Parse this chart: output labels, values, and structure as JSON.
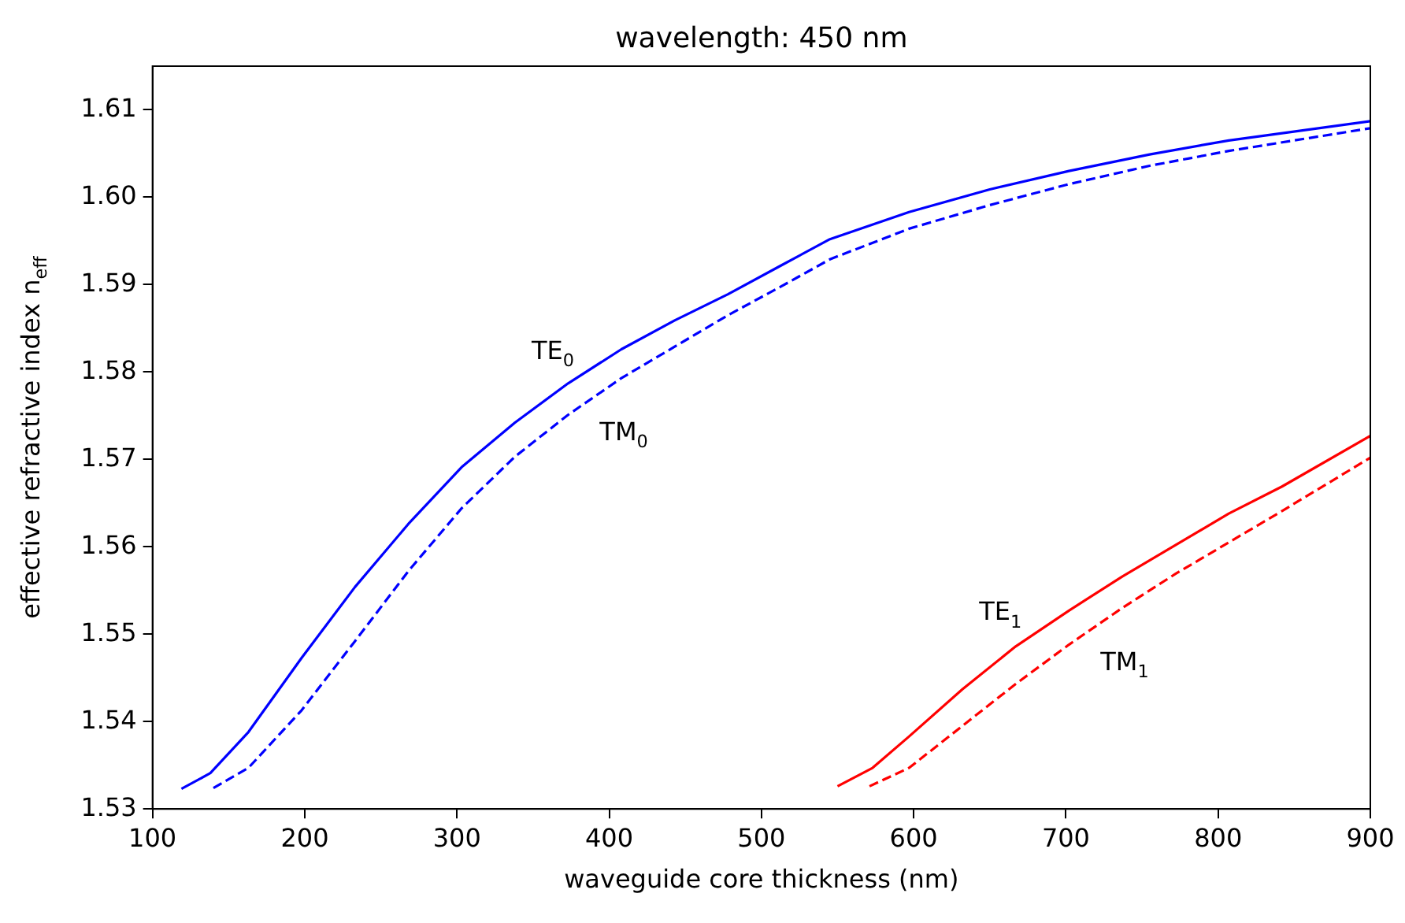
{
  "chart_data": {
    "type": "line",
    "title": "wavelength: 450 nm",
    "xlabel": "waveguide core thickness (nm)",
    "ylabel": "effective refractive index n$_{eff}$",
    "xlim": [
      100,
      900
    ],
    "xticks": [
      100,
      200,
      300,
      400,
      500,
      600,
      700,
      800,
      900
    ],
    "ylim": [
      1.53,
      1.615
    ],
    "yticks": [
      1.53,
      1.54,
      1.55,
      1.56,
      1.57,
      1.58,
      1.59,
      {
        "value": 1.6,
        "label": "1.60"
      },
      1.61
    ],
    "grid": false,
    "legend": false,
    "marker": "none",
    "series": [
      {
        "name": "TE$_{0}$",
        "color": "#0000ff",
        "line_style": "solid",
        "x": [
          119,
          138,
          163,
          198,
          233,
          268,
          303,
          338,
          373,
          408,
          443,
          478,
          513,
          545,
          597,
          650,
          702,
          755,
          807,
          900
        ],
        "values": [
          1.5323,
          1.5341,
          1.5388,
          1.5473,
          1.5554,
          1.5626,
          1.5691,
          1.5742,
          1.5787,
          1.5826,
          1.5859,
          1.5889,
          1.5922,
          1.5952,
          1.5983,
          1.6009,
          1.603,
          1.6049,
          1.6065,
          1.6087
        ]
      },
      {
        "name": "TM$_{0}$",
        "color": "#0000ff",
        "line_style": "dashed",
        "x": [
          140,
          163,
          198,
          233,
          268,
          303,
          338,
          373,
          408,
          443,
          478,
          513,
          545,
          597,
          650,
          702,
          755,
          807,
          900
        ],
        "values": [
          1.5324,
          1.5347,
          1.5413,
          1.5492,
          1.5572,
          1.5644,
          1.5703,
          1.5751,
          1.5793,
          1.5829,
          1.5865,
          1.5898,
          1.5929,
          1.5964,
          1.5991,
          1.6015,
          1.6036,
          1.6053,
          1.6079
        ]
      },
      {
        "name": "TE$_{1}$",
        "color": "#ff0000",
        "line_style": "solid",
        "x": [
          550,
          573,
          597,
          632,
          667,
          702,
          737,
          772,
          807,
          842,
          900
        ],
        "values": [
          1.5326,
          1.5347,
          1.5383,
          1.5437,
          1.5486,
          1.5527,
          1.5566,
          1.5602,
          1.5638,
          1.5669,
          1.5727
        ]
      },
      {
        "name": "TM$_{1}$",
        "color": "#ff0000",
        "line_style": "dashed",
        "x": [
          571,
          597,
          632,
          667,
          702,
          737,
          772,
          807,
          842,
          900
        ],
        "values": [
          1.5326,
          1.5347,
          1.5395,
          1.5443,
          1.5488,
          1.553,
          1.5569,
          1.5605,
          1.5641,
          1.5702
        ]
      }
    ]
  }
}
